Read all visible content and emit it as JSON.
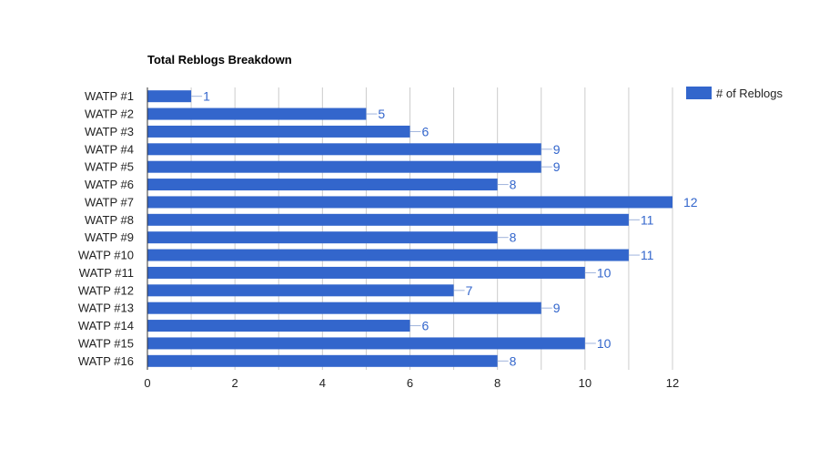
{
  "chart_data": {
    "type": "bar",
    "orientation": "horizontal",
    "title": "Total Reblogs Breakdown",
    "xlabel": "",
    "ylabel": "",
    "xlim": [
      0,
      12
    ],
    "x_ticks": [
      "0",
      "2",
      "4",
      "6",
      "8",
      "10",
      "12"
    ],
    "grid": true,
    "legend_position": "top-right",
    "categories": [
      "WATP #1",
      "WATP #2",
      "WATP #3",
      "WATP #4",
      "WATP #5",
      "WATP #6",
      "WATP #7",
      "WATP #8",
      "WATP #9",
      "WATP #10",
      "WATP #11",
      "WATP #12",
      "WATP #13",
      "WATP #14",
      "WATP #15",
      "WATP #16"
    ],
    "series": [
      {
        "name": "# of Reblogs",
        "color": "#3366cc",
        "values": [
          1,
          5,
          6,
          9,
          9,
          8,
          12,
          11,
          8,
          11,
          10,
          7,
          9,
          6,
          10,
          8
        ]
      }
    ]
  },
  "colors": {
    "bar": "#3366cc",
    "label_text": "#3366cc",
    "axis_text": "#222222",
    "title_text": "#000000",
    "grid": "#cccccc",
    "axis_line": "#333333"
  }
}
